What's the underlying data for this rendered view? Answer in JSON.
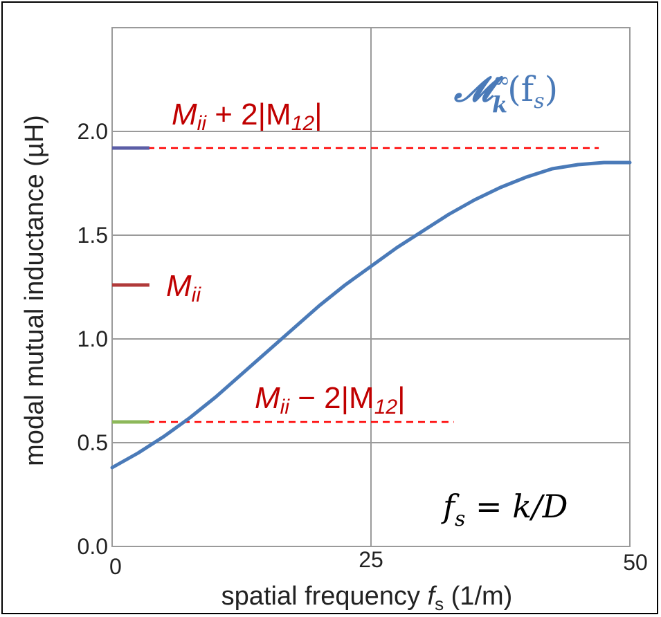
{
  "chart_data": {
    "type": "line",
    "xlabel": "spatial frequency",
    "xlabel_symbol": "f",
    "xlabel_symbol_sub": "s",
    "xlabel_unit": "(1/m)",
    "ylabel": "modal mutual inductance (µH)",
    "xlim": [
      0,
      50
    ],
    "ylim": [
      0.0,
      2.5
    ],
    "x_ticks": [
      "0",
      "25",
      "50"
    ],
    "y_ticks": [
      "0.0",
      "0.5",
      "1.0",
      "1.5",
      "2.0"
    ],
    "x_tick_values": [
      0,
      25,
      50
    ],
    "y_tick_values": [
      0.0,
      0.5,
      1.0,
      1.5,
      2.0
    ],
    "grid": true,
    "series": [
      {
        "color": "#4a7ab8",
        "x": [
          0,
          2.5,
          5,
          7.5,
          10,
          12.5,
          15,
          17.5,
          20,
          22.5,
          25,
          27.5,
          30,
          32.5,
          35,
          37.5,
          40,
          42.5,
          45,
          47.5,
          50
        ],
        "y": [
          0.38,
          0.45,
          0.53,
          0.62,
          0.72,
          0.83,
          0.94,
          1.05,
          1.16,
          1.26,
          1.35,
          1.44,
          1.52,
          1.6,
          1.67,
          1.73,
          1.78,
          1.82,
          1.84,
          1.85,
          1.85
        ]
      }
    ],
    "reference_lines": [
      {
        "y": 1.92,
        "style": "dashed",
        "color": "#ff0000",
        "x_end": 47
      },
      {
        "y": 0.6,
        "style": "dashed",
        "color": "#ff0000",
        "x_end": 33
      }
    ],
    "markers": [
      {
        "y": 1.92,
        "color": "#5b5ea6"
      },
      {
        "y": 1.26,
        "color": "#b03a3a"
      },
      {
        "y": 0.6,
        "color": "#8db85a"
      }
    ],
    "annotations": {
      "upper": {
        "main": "M",
        "sub": "ii",
        "op": " + 2|M",
        "sub2": "12",
        "close": "|"
      },
      "middle": {
        "main": "M",
        "sub": "ii"
      },
      "lower": {
        "main": "M",
        "sub": "ii",
        "op": " − 2|M",
        "sub2": "12",
        "close": "|"
      },
      "curve_label": {
        "main": "𝓜",
        "sup": "∞",
        "sub": "k",
        "rest": "(f",
        "rest_sub": "s",
        "close": ")"
      },
      "formula": {
        "lhs": "f",
        "lhs_sub": "s",
        "rhs": " = k/D"
      }
    }
  }
}
